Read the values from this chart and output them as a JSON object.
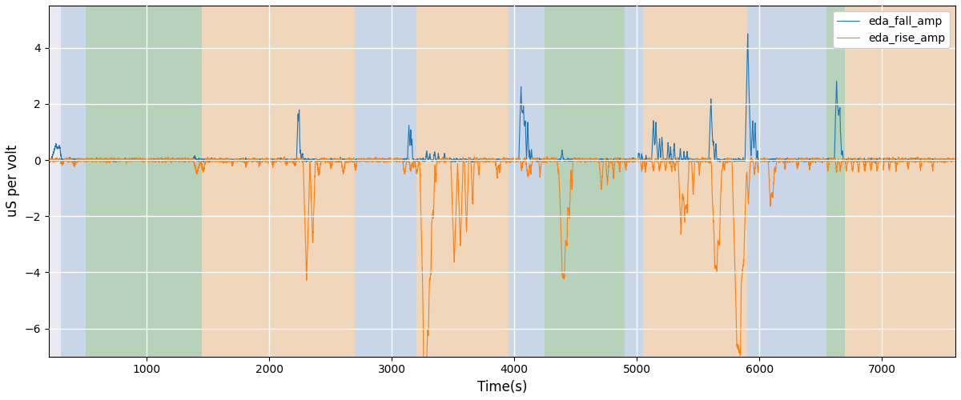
{
  "xlabel": "Time(s)",
  "ylabel": "uS per volt",
  "xlim": [
    200,
    7600
  ],
  "ylim": [
    -7,
    5.5
  ],
  "yticks": [
    -6,
    -4,
    -2,
    0,
    2,
    4
  ],
  "xticks": [
    1000,
    2000,
    3000,
    4000,
    5000,
    6000,
    7000
  ],
  "fall_color": "#1f77b4",
  "rise_color": "#ff7f0e",
  "bg_blue": "#aec6df",
  "bg_green": "#8cbf8c",
  "bg_orange": "#f5c990",
  "bg_alpha": 0.55,
  "legend_labels": [
    "eda_fall_amp",
    "eda_rise_amp"
  ],
  "background_regions": [
    {
      "start": 300,
      "end": 500,
      "color": "blue"
    },
    {
      "start": 500,
      "end": 1450,
      "color": "green"
    },
    {
      "start": 1450,
      "end": 2700,
      "color": "orange"
    },
    {
      "start": 2700,
      "end": 3200,
      "color": "blue"
    },
    {
      "start": 3200,
      "end": 3950,
      "color": "orange"
    },
    {
      "start": 3950,
      "end": 4250,
      "color": "blue"
    },
    {
      "start": 4250,
      "end": 4900,
      "color": "green"
    },
    {
      "start": 4900,
      "end": 5050,
      "color": "blue"
    },
    {
      "start": 5050,
      "end": 5900,
      "color": "orange"
    },
    {
      "start": 5900,
      "end": 6550,
      "color": "blue"
    },
    {
      "start": 6550,
      "end": 6700,
      "color": "green"
    },
    {
      "start": 6700,
      "end": 7600,
      "color": "orange"
    }
  ],
  "facecolor": "#eaeaf2",
  "grid_color": "white",
  "grid_lw": 1.0
}
